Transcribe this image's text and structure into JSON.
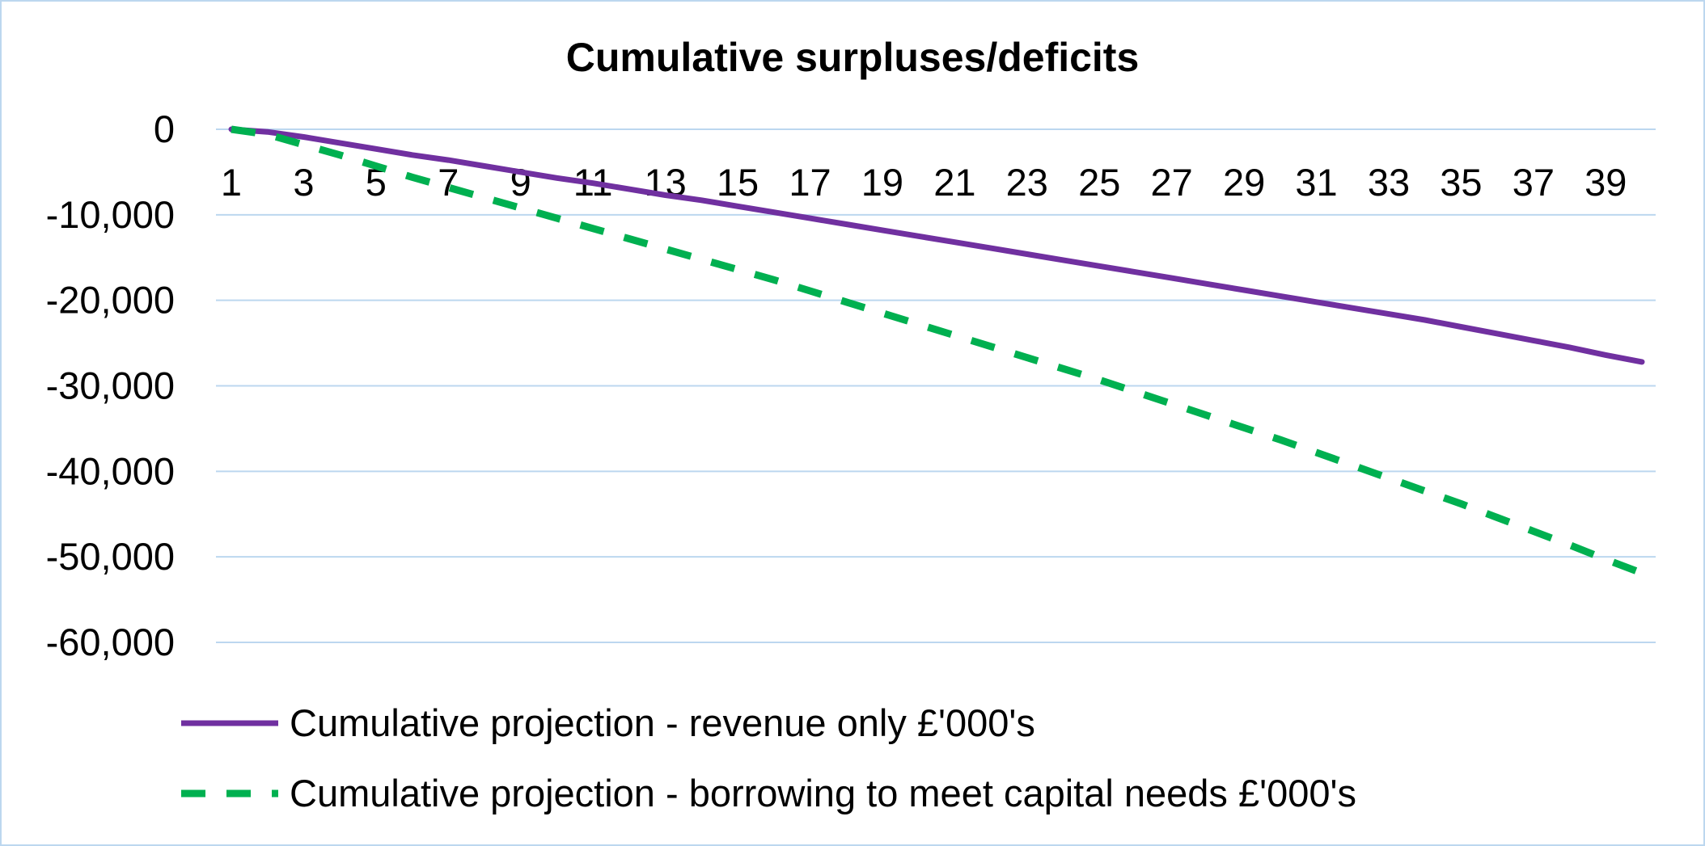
{
  "chart_data": {
    "type": "line",
    "title": "Cumulative surpluses/deficits",
    "xlabel": "",
    "ylabel": "",
    "x": [
      1,
      2,
      3,
      4,
      5,
      6,
      7,
      8,
      9,
      10,
      11,
      12,
      13,
      14,
      15,
      16,
      17,
      18,
      19,
      20,
      21,
      22,
      23,
      24,
      25,
      26,
      27,
      28,
      29,
      30,
      31,
      32,
      33,
      34,
      35,
      36,
      37,
      38,
      39,
      40
    ],
    "x_tick_labels": [
      "1",
      "3",
      "5",
      "7",
      "9",
      "11",
      "13",
      "15",
      "17",
      "19",
      "21",
      "23",
      "25",
      "27",
      "29",
      "31",
      "33",
      "35",
      "37",
      "39"
    ],
    "ylim": [
      -60000,
      0
    ],
    "y_tick_labels": [
      "0",
      "-10,000",
      "-20,000",
      "-30,000",
      "-40,000",
      "-50,000",
      "-60,000"
    ],
    "y_ticks": [
      0,
      -10000,
      -20000,
      -30000,
      -40000,
      -50000,
      -60000
    ],
    "grid": true,
    "legend_position": "bottom",
    "series": [
      {
        "name": "Cumulative projection - revenue only £'000's",
        "color": "#7030a0",
        "style": "solid",
        "values": [
          0,
          -300,
          -900,
          -1600,
          -2300,
          -3000,
          -3600,
          -4300,
          -5000,
          -5700,
          -6300,
          -7000,
          -7700,
          -8300,
          -9000,
          -9700,
          -10400,
          -11100,
          -11800,
          -12500,
          -13200,
          -13900,
          -14600,
          -15300,
          -16000,
          -16700,
          -17400,
          -18100,
          -18800,
          -19500,
          -20200,
          -20900,
          -21600,
          -22300,
          -23100,
          -23900,
          -24700,
          -25500,
          -26400,
          -27200
        ]
      },
      {
        "name": "Cumulative projection - borrowing to meet capital needs £'000's",
        "color": "#00b050",
        "style": "dashed",
        "values": [
          0,
          -600,
          -1800,
          -3000,
          -4300,
          -5600,
          -6800,
          -8000,
          -9200,
          -10400,
          -11600,
          -12800,
          -14000,
          -15200,
          -16400,
          -17600,
          -18900,
          -20200,
          -21500,
          -22800,
          -24100,
          -25400,
          -26700,
          -28000,
          -29300,
          -30700,
          -32100,
          -33500,
          -34900,
          -36300,
          -37800,
          -39300,
          -40800,
          -42300,
          -43800,
          -45400,
          -47000,
          -48600,
          -50300,
          -51900
        ]
      }
    ]
  }
}
